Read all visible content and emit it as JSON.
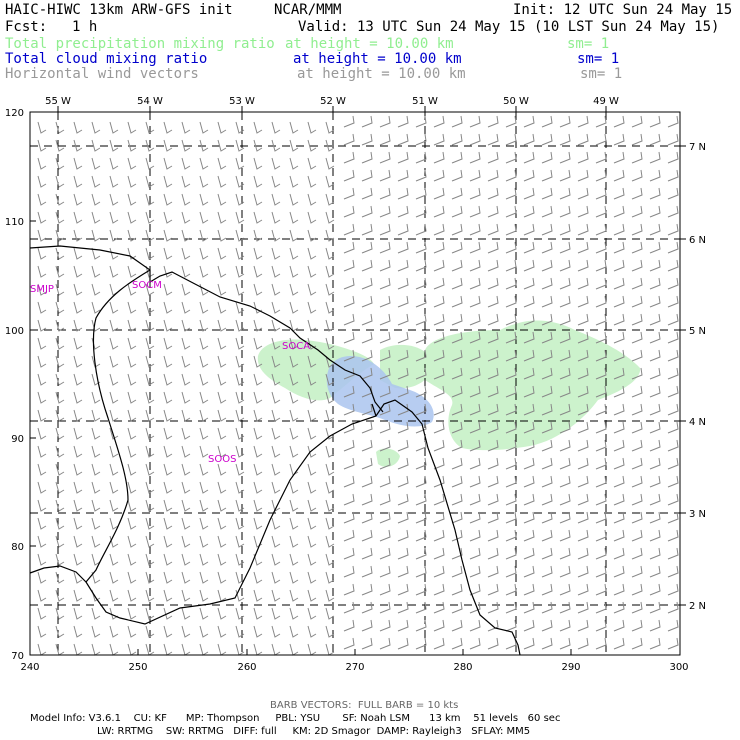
{
  "header": {
    "model_title": "HAIC-HIWC 13km ARW-GFS init",
    "org": "NCAR/MMM",
    "init": "Init: 12 UTC Sun 24 May 15",
    "fcst_label": "Fcst:",
    "fcst_value": "1 h",
    "valid": "Valid: 13 UTC Sun 24 May 15 (10 LST Sun 24 May 15)"
  },
  "fields": [
    {
      "name": "Total precipitation mixing ratio",
      "height": "at height = 10.00 km",
      "sm": "sm= 1",
      "color": "#90ee90"
    },
    {
      "name": "Total cloud mixing ratio",
      "height": "at height = 10.00 km",
      "sm": "sm= 1",
      "color": "#0000cc"
    },
    {
      "name": "Horizontal wind vectors",
      "height": "at height = 10.00 km",
      "sm": "sm= 1",
      "color": "#999999"
    }
  ],
  "map": {
    "colors": {
      "precip": "#ccf2cc",
      "cloud": "#aac4ee",
      "station": "#cc00cc",
      "barb": "#888888",
      "grid": "#000000"
    },
    "lon_labels": [
      "55 W",
      "54 W",
      "53 W",
      "52 W",
      "51 W",
      "50 W",
      "49 W"
    ],
    "lat_labels": [
      "7 N",
      "6 N",
      "5 N",
      "4 N",
      "3 N",
      "2 N"
    ],
    "x_ticks": [
      "240",
      "250",
      "260",
      "270",
      "280",
      "290",
      "300"
    ],
    "y_ticks": [
      "120",
      "110",
      "100",
      "90",
      "80",
      "70"
    ],
    "stations": [
      "SMJP",
      "SOCM",
      "SOCA",
      "SOOS"
    ]
  },
  "footer": {
    "barb_note": "BARB VECTORS:  FULL BARB = 10 kts",
    "model_info_line1": "Model Info: V3.6.1    CU: KF      MP: Thompson     PBL: YSU       SF: Noah LSM      13 km    51 levels   60 sec",
    "model_info_line2": "LW: RRTMG    SW: RRTMG   DIFF: full     KM: 2D Smagor  DAMP: Rayleigh3   SFLAY: MM5"
  }
}
